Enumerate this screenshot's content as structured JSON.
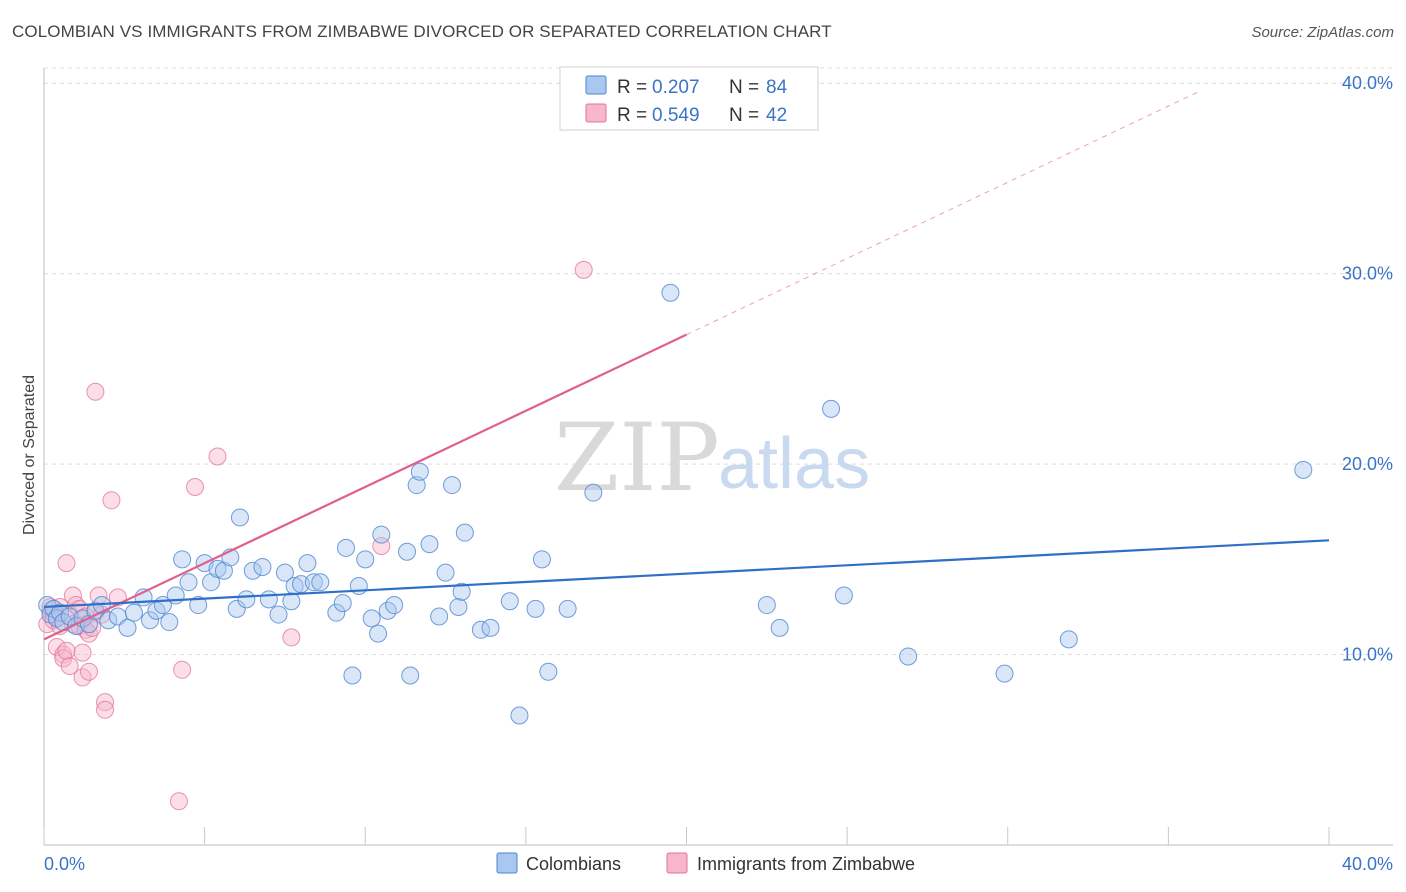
{
  "title": "COLOMBIAN VS IMMIGRANTS FROM ZIMBABWE DIVORCED OR SEPARATED CORRELATION CHART",
  "source": "Source: ZipAtlas.com",
  "watermark": {
    "zip": "ZIP",
    "atlas": "atlas"
  },
  "colors": {
    "colombians_fill": "#a9c7ef",
    "colombians_stroke": "#4f86d1",
    "colombians_line": "#2f6fc7",
    "zimbabwe_fill": "#f7b6c9",
    "zimbabwe_stroke": "#e0739a",
    "zimbabwe_line": "#e0608c",
    "tick_text": "#3a74c6",
    "grid": "#dcdcdc"
  },
  "stats": {
    "r_label": "R =",
    "n_label": "N =",
    "colombians": {
      "r": "0.207",
      "n": "84"
    },
    "zimbabwe": {
      "r": "0.549",
      "n": "42"
    }
  },
  "chart_data": {
    "type": "scatter",
    "xlabel": "",
    "ylabel": "Divorced or Separated",
    "xlim": [
      0,
      40
    ],
    "ylim": [
      0,
      40.8
    ],
    "x_tick_labels": [
      "0.0%",
      "40.0%"
    ],
    "y_ticks": [
      10,
      20,
      30,
      40
    ],
    "y_tick_labels": [
      "10.0%",
      "20.0%",
      "30.0%",
      "40.0%"
    ],
    "grid": true,
    "legend_position": "bottom-center",
    "series": [
      {
        "name": "Colombians",
        "trend": {
          "x": [
            0,
            40
          ],
          "y": [
            12.5,
            16.0
          ],
          "style": "solid"
        },
        "points": [
          [
            0.1,
            12.6
          ],
          [
            0.2,
            12.1
          ],
          [
            0.3,
            12.4
          ],
          [
            0.4,
            11.9
          ],
          [
            0.5,
            12.2
          ],
          [
            0.6,
            11.7
          ],
          [
            0.8,
            12.0
          ],
          [
            1.0,
            11.5
          ],
          [
            1.2,
            11.9
          ],
          [
            1.4,
            11.6
          ],
          [
            1.6,
            12.3
          ],
          [
            1.8,
            12.6
          ],
          [
            2.0,
            11.8
          ],
          [
            2.3,
            12.0
          ],
          [
            2.6,
            11.4
          ],
          [
            2.8,
            12.2
          ],
          [
            3.1,
            13.0
          ],
          [
            3.3,
            11.8
          ],
          [
            3.5,
            12.3
          ],
          [
            3.7,
            12.6
          ],
          [
            3.9,
            11.7
          ],
          [
            4.1,
            13.1
          ],
          [
            4.3,
            15.0
          ],
          [
            4.5,
            13.8
          ],
          [
            4.8,
            12.6
          ],
          [
            5.0,
            14.8
          ],
          [
            5.2,
            13.8
          ],
          [
            5.4,
            14.5
          ],
          [
            5.6,
            14.4
          ],
          [
            5.8,
            15.1
          ],
          [
            6.0,
            12.4
          ],
          [
            6.1,
            17.2
          ],
          [
            6.3,
            12.9
          ],
          [
            6.5,
            14.4
          ],
          [
            6.8,
            14.6
          ],
          [
            7.0,
            12.9
          ],
          [
            7.3,
            12.1
          ],
          [
            7.5,
            14.3
          ],
          [
            7.7,
            12.8
          ],
          [
            7.8,
            13.6
          ],
          [
            8.0,
            13.7
          ],
          [
            8.2,
            14.8
          ],
          [
            8.4,
            13.8
          ],
          [
            8.6,
            13.8
          ],
          [
            9.1,
            12.2
          ],
          [
            9.3,
            12.7
          ],
          [
            9.4,
            15.6
          ],
          [
            9.6,
            8.9
          ],
          [
            9.8,
            13.6
          ],
          [
            10.0,
            15.0
          ],
          [
            10.2,
            11.9
          ],
          [
            10.4,
            11.1
          ],
          [
            10.5,
            16.3
          ],
          [
            10.7,
            12.3
          ],
          [
            10.9,
            12.6
          ],
          [
            11.3,
            15.4
          ],
          [
            11.4,
            8.9
          ],
          [
            11.6,
            18.9
          ],
          [
            11.7,
            19.6
          ],
          [
            12.0,
            15.8
          ],
          [
            12.3,
            12.0
          ],
          [
            12.5,
            14.3
          ],
          [
            12.7,
            18.9
          ],
          [
            12.9,
            12.5
          ],
          [
            13.0,
            13.3
          ],
          [
            13.1,
            16.4
          ],
          [
            13.6,
            11.3
          ],
          [
            13.9,
            11.4
          ],
          [
            14.5,
            12.8
          ],
          [
            14.8,
            6.8
          ],
          [
            15.3,
            12.4
          ],
          [
            15.5,
            15.0
          ],
          [
            15.7,
            9.1
          ],
          [
            16.3,
            12.4
          ],
          [
            17.1,
            18.5
          ],
          [
            19.5,
            29.0
          ],
          [
            22.5,
            12.6
          ],
          [
            22.9,
            11.4
          ],
          [
            24.5,
            22.9
          ],
          [
            24.9,
            13.1
          ],
          [
            26.9,
            9.9
          ],
          [
            29.9,
            9.0
          ],
          [
            31.9,
            10.8
          ],
          [
            39.2,
            19.7
          ]
        ]
      },
      {
        "name": "Immigrants from Zimbabwe",
        "trend": {
          "x": [
            0,
            20
          ],
          "y": [
            10.8,
            26.8
          ],
          "style": "solid",
          "extended": {
            "x": [
              20,
              36
            ],
            "y": [
              26.8,
              39.6
            ]
          }
        },
        "points": [
          [
            0.1,
            11.6
          ],
          [
            0.2,
            12.3
          ],
          [
            0.2,
            12.5
          ],
          [
            0.3,
            12.1
          ],
          [
            0.3,
            11.8
          ],
          [
            0.4,
            10.4
          ],
          [
            0.4,
            12.0
          ],
          [
            0.5,
            11.5
          ],
          [
            0.5,
            12.5
          ],
          [
            0.6,
            10.0
          ],
          [
            0.6,
            9.8
          ],
          [
            0.7,
            10.2
          ],
          [
            0.7,
            14.8
          ],
          [
            0.8,
            9.4
          ],
          [
            0.8,
            12.1
          ],
          [
            0.9,
            11.6
          ],
          [
            0.9,
            13.1
          ],
          [
            1.0,
            12.6
          ],
          [
            1.1,
            12.4
          ],
          [
            1.1,
            11.5
          ],
          [
            1.2,
            8.8
          ],
          [
            1.2,
            10.1
          ],
          [
            1.3,
            12.0
          ],
          [
            1.3,
            11.3
          ],
          [
            1.4,
            9.1
          ],
          [
            1.4,
            11.1
          ],
          [
            1.5,
            11.4
          ],
          [
            1.6,
            12.2
          ],
          [
            1.6,
            23.8
          ],
          [
            1.7,
            13.1
          ],
          [
            1.8,
            12.1
          ],
          [
            1.9,
            7.5
          ],
          [
            1.9,
            7.1
          ],
          [
            2.1,
            18.1
          ],
          [
            2.3,
            13.0
          ],
          [
            4.2,
            2.3
          ],
          [
            4.3,
            9.2
          ],
          [
            4.7,
            18.8
          ],
          [
            5.4,
            20.4
          ],
          [
            7.7,
            10.9
          ],
          [
            10.5,
            15.7
          ],
          [
            16.8,
            30.2
          ]
        ]
      }
    ]
  },
  "legend": {
    "items": [
      "Colombians",
      "Immigrants from Zimbabwe"
    ]
  }
}
